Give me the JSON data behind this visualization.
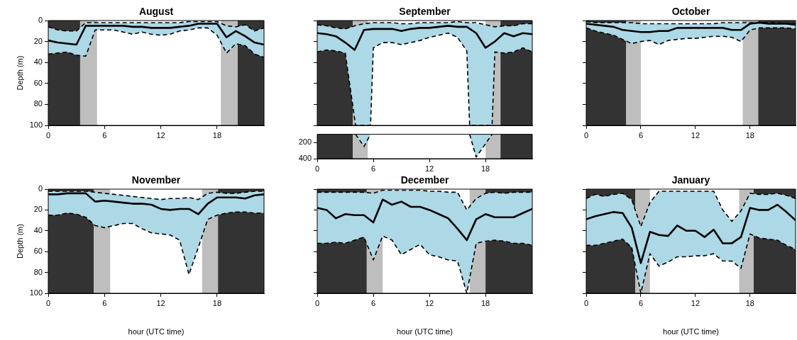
{
  "chart_data": [
    {
      "type": "line",
      "title": "August",
      "ylabel": "Depth (m)",
      "x": [
        0,
        1,
        2,
        3,
        4,
        5,
        6,
        7,
        8,
        9,
        10,
        11,
        12,
        13,
        14,
        15,
        16,
        17,
        18,
        19,
        20,
        21,
        22,
        23
      ],
      "xlim": [
        0,
        23
      ],
      "xticks": [
        0,
        6,
        12,
        18
      ],
      "ylim": [
        100,
        0
      ],
      "yticks": [
        0,
        20,
        40,
        60,
        80,
        100
      ],
      "series": [
        {
          "color": "#000000",
          "values": [
            19,
            21,
            22,
            23,
            5,
            5,
            5,
            5,
            5,
            6,
            6,
            7,
            7,
            7,
            6,
            5,
            3,
            3,
            3,
            16,
            10,
            15,
            21,
            23
          ]
        },
        {
          "color": "#000000",
          "line_style": "dashed",
          "values": [
            32,
            31,
            30,
            33,
            34,
            9,
            9,
            9,
            11,
            13,
            11,
            13,
            14,
            13,
            10,
            9,
            7,
            7,
            14,
            31,
            22,
            24,
            32,
            35
          ],
          "lower": [
            32,
            31,
            30,
            33,
            34,
            9,
            9,
            9,
            11,
            13,
            11,
            13,
            14,
            13,
            10,
            9,
            7,
            7,
            14,
            31,
            22,
            24,
            32,
            35
          ],
          "upper": [
            6,
            9,
            10,
            10,
            2,
            2,
            2,
            2,
            2,
            2,
            2,
            2,
            2,
            2,
            2,
            1,
            1,
            1,
            1,
            5,
            6,
            4,
            10,
            7
          ]
        },
        {
          "color": "#000000",
          "line_style": "dashed",
          "values": [
            6,
            9,
            10,
            10,
            2,
            2,
            2,
            2,
            2,
            2,
            2,
            2,
            2,
            2,
            2,
            1,
            1,
            1,
            1,
            5,
            6,
            4,
            10,
            7
          ]
        }
      ],
      "bands": [
        {
          "axis": "x",
          "from": 0,
          "to": 3.4,
          "color": "#333333"
        },
        {
          "axis": "x",
          "from": 3.4,
          "to": 5.2,
          "color": "#bebebe"
        },
        {
          "axis": "x",
          "from": 18.4,
          "to": 20.2,
          "color": "#bebebe"
        },
        {
          "axis": "x",
          "from": 20.2,
          "to": 23,
          "color": "#333333"
        }
      ]
    },
    {
      "type": "line",
      "title": "September",
      "x": [
        0,
        1,
        2,
        3,
        4,
        5,
        6,
        7,
        8,
        9,
        10,
        11,
        12,
        13,
        14,
        15,
        16,
        17,
        18,
        19,
        20,
        21,
        22,
        23
      ],
      "xlim": [
        0,
        23
      ],
      "xticks": [
        0,
        6,
        12,
        18
      ],
      "ylim": [
        100,
        0
      ],
      "yticks": [
        0,
        20,
        40,
        60,
        80,
        100
      ],
      "tick_labels": false,
      "series": [
        {
          "color": "#000000",
          "values": [
            12,
            13,
            15,
            21,
            28,
            9,
            8,
            8,
            8,
            10,
            8,
            7,
            7,
            6,
            5,
            6,
            6,
            12,
            26,
            20,
            12,
            15,
            12,
            13
          ]
        },
        {
          "color": "#000000",
          "line_style": "dashed",
          "x": [
            0,
            1,
            2,
            3,
            4.1,
            5.7,
            6,
            7,
            8,
            9,
            10,
            11,
            12,
            13,
            14,
            15,
            16,
            16.3,
            18.7,
            19,
            20,
            21,
            22,
            23
          ],
          "values": [
            30,
            28,
            29,
            31,
            100,
            100,
            26,
            21,
            21,
            23,
            21,
            19,
            16,
            14,
            12,
            16,
            29,
            100,
            100,
            30,
            31,
            30,
            26,
            30
          ],
          "lower": [
            30,
            28,
            29,
            31,
            100,
            100,
            26,
            21,
            21,
            23,
            21,
            19,
            16,
            14,
            12,
            16,
            29,
            100,
            100,
            30,
            31,
            30,
            26,
            30
          ],
          "upper": [
            4,
            5,
            7,
            8,
            5,
            2,
            2,
            2,
            2,
            3,
            3,
            2,
            2,
            2,
            2,
            1,
            2,
            2,
            5,
            6,
            5,
            5,
            3,
            3
          ]
        },
        {
          "color": "#000000",
          "line_style": "dashed",
          "values": [
            4,
            5,
            7,
            8,
            5,
            3,
            2,
            2,
            2,
            3,
            3,
            2,
            2,
            2,
            2,
            1,
            2,
            2,
            4,
            6,
            5,
            5,
            3,
            3
          ]
        }
      ],
      "bands": [
        {
          "axis": "x",
          "from": 0,
          "to": 3.8,
          "color": "#333333"
        },
        {
          "axis": "x",
          "from": 3.8,
          "to": 5.4,
          "color": "#bebebe"
        },
        {
          "axis": "x",
          "from": 18,
          "to": 19.6,
          "color": "#bebebe"
        },
        {
          "axis": "x",
          "from": 19.6,
          "to": 23,
          "color": "#333333"
        }
      ]
    },
    {
      "type": "line",
      "x": [
        4.1,
        5,
        5.7,
        11,
        16.3,
        17,
        18.7
      ],
      "xlim": [
        0,
        23
      ],
      "xticks": [
        0,
        6,
        12,
        18
      ],
      "ylim": [
        400,
        100
      ],
      "yticks": [
        200,
        400
      ],
      "series": [
        {
          "color": "#000000",
          "line_style": "dashed",
          "values": [
            100,
            250,
            100,
            null,
            100,
            380,
            100
          ],
          "lower": [
            100,
            250,
            100,
            null,
            100,
            380,
            100
          ],
          "upper": [
            100,
            100,
            100,
            null,
            100,
            100,
            100
          ]
        }
      ],
      "bands": [
        {
          "axis": "x",
          "from": 0,
          "to": 3.8,
          "color": "#333333"
        },
        {
          "axis": "x",
          "from": 3.8,
          "to": 5.4,
          "color": "#bebebe"
        },
        {
          "axis": "x",
          "from": 18,
          "to": 19.6,
          "color": "#bebebe"
        },
        {
          "axis": "x",
          "from": 19.6,
          "to": 23,
          "color": "#333333"
        }
      ]
    },
    {
      "type": "line",
      "title": "October",
      "x": [
        0,
        1,
        2,
        3,
        4,
        5,
        6,
        7,
        8,
        9,
        10,
        11,
        12,
        13,
        14,
        15,
        16,
        17,
        18,
        19,
        20,
        21,
        22,
        23
      ],
      "xlim": [
        0,
        23
      ],
      "xticks": [
        0,
        6,
        12,
        18
      ],
      "ylim": [
        100,
        0
      ],
      "yticks": [
        0,
        20,
        40,
        60,
        80,
        100
      ],
      "tick_labels": "x",
      "series": [
        {
          "color": "#000000",
          "values": [
            3,
            4,
            5,
            6,
            9,
            10,
            11,
            11,
            10,
            10,
            7,
            7,
            7,
            7,
            7,
            7,
            9,
            9,
            3,
            2,
            3,
            3,
            3,
            4
          ]
        },
        {
          "color": "#000000",
          "line_style": "dashed",
          "values": [
            7,
            10,
            12,
            14,
            18,
            22,
            20,
            19,
            23,
            19,
            18,
            17,
            17,
            16,
            15,
            15,
            16,
            20,
            9,
            7,
            7,
            7,
            7,
            8
          ],
          "lower": [
            7,
            10,
            12,
            14,
            18,
            22,
            20,
            19,
            23,
            19,
            18,
            17,
            17,
            16,
            15,
            15,
            16,
            20,
            9,
            7,
            7,
            7,
            7,
            8
          ],
          "upper": [
            1,
            2,
            2,
            2,
            2,
            2,
            3,
            3,
            3,
            3,
            3,
            3,
            3,
            3,
            3,
            2,
            2,
            2,
            2,
            2,
            2,
            2,
            3,
            3
          ]
        },
        {
          "color": "#000000",
          "line_style": "dashed",
          "values": [
            1,
            2,
            2,
            2,
            2,
            2,
            3,
            3,
            3,
            3,
            3,
            3,
            3,
            3,
            3,
            2,
            2,
            2,
            2,
            2,
            2,
            2,
            3,
            3
          ]
        }
      ],
      "bands": [
        {
          "axis": "x",
          "from": 0,
          "to": 4.4,
          "color": "#333333"
        },
        {
          "axis": "x",
          "from": 4.4,
          "to": 6,
          "color": "#bebebe"
        },
        {
          "axis": "x",
          "from": 17.2,
          "to": 18.9,
          "color": "#bebebe"
        },
        {
          "axis": "x",
          "from": 18.9,
          "to": 23,
          "color": "#333333"
        }
      ]
    },
    {
      "type": "line",
      "title": "November",
      "xlabel": "hour (UTC time)",
      "ylabel": "Depth (m)",
      "x": [
        0,
        1,
        2,
        3,
        4,
        5,
        6,
        7,
        8,
        9,
        10,
        11,
        12,
        13,
        14,
        15,
        16,
        17,
        18,
        19,
        20,
        21,
        22,
        23
      ],
      "xlim": [
        0,
        23
      ],
      "xticks": [
        0,
        6,
        12,
        18
      ],
      "ylim": [
        100,
        0
      ],
      "yticks": [
        0,
        20,
        40,
        60,
        80,
        100
      ],
      "series": [
        {
          "color": "#000000",
          "values": [
            5,
            5,
            4,
            4,
            4,
            12,
            11,
            12,
            13,
            14,
            14,
            15,
            19,
            20,
            19,
            19,
            24,
            14,
            8,
            8,
            8,
            9,
            6,
            5
          ]
        },
        {
          "color": "#000000",
          "line_style": "dashed",
          "values": [
            25,
            25,
            23,
            24,
            27,
            35,
            37,
            35,
            33,
            33,
            38,
            42,
            43,
            44,
            49,
            82,
            56,
            29,
            25,
            23,
            22,
            22,
            23,
            23
          ],
          "lower": [
            25,
            25,
            23,
            24,
            27,
            35,
            37,
            35,
            33,
            33,
            38,
            42,
            43,
            44,
            49,
            82,
            56,
            29,
            25,
            23,
            22,
            22,
            23,
            23
          ],
          "upper": [
            2,
            2,
            2,
            2,
            2,
            3,
            4,
            5,
            6,
            7,
            8,
            9,
            10,
            9,
            9,
            8,
            10,
            4,
            3,
            4,
            4,
            3,
            2,
            2
          ]
        },
        {
          "color": "#000000",
          "line_style": "dashed",
          "values": [
            2,
            2,
            2,
            2,
            2,
            3,
            4,
            5,
            6,
            7,
            8,
            9,
            10,
            9,
            9,
            8,
            10,
            4,
            3,
            4,
            4,
            3,
            2,
            2
          ]
        }
      ],
      "bands": [
        {
          "axis": "x",
          "from": 0,
          "to": 4.85,
          "color": "#333333"
        },
        {
          "axis": "x",
          "from": 4.85,
          "to": 6.6,
          "color": "#bebebe"
        },
        {
          "axis": "x",
          "from": 16.4,
          "to": 18.1,
          "color": "#bebebe"
        },
        {
          "axis": "x",
          "from": 18.1,
          "to": 23,
          "color": "#333333"
        }
      ]
    },
    {
      "type": "line",
      "title": "December",
      "xlabel": "hour (UTC time)",
      "x": [
        0,
        1,
        2,
        3,
        4,
        5,
        6,
        7,
        8,
        9,
        10,
        11,
        12,
        13,
        14,
        15,
        16,
        17,
        18,
        19,
        20,
        21,
        22,
        23
      ],
      "xlim": [
        0,
        23
      ],
      "xticks": [
        0,
        6,
        12,
        18
      ],
      "ylim": [
        100,
        0
      ],
      "yticks": [
        0,
        20,
        40,
        60,
        80,
        100
      ],
      "tick_labels": "x",
      "series": [
        {
          "color": "#000000",
          "values": [
            18,
            20,
            28,
            24,
            25,
            25,
            32,
            10,
            15,
            12,
            17,
            17,
            20,
            24,
            28,
            38,
            49,
            29,
            24,
            27,
            27,
            27,
            23,
            19
          ]
        },
        {
          "color": "#000000",
          "line_style": "dashed",
          "values": [
            52,
            52,
            51,
            52,
            49,
            46,
            68,
            45,
            49,
            63,
            58,
            53,
            63,
            65,
            68,
            69,
            100,
            52,
            50,
            49,
            50,
            52,
            52,
            54
          ],
          "lower": [
            52,
            52,
            51,
            52,
            49,
            46,
            68,
            45,
            49,
            63,
            58,
            53,
            63,
            65,
            68,
            69,
            100,
            52,
            50,
            49,
            50,
            52,
            52,
            54
          ],
          "upper": [
            3,
            3,
            3,
            3,
            3,
            3,
            4,
            1,
            1,
            1,
            1,
            1,
            2,
            2,
            3,
            3,
            20,
            9,
            4,
            3,
            4,
            3,
            3,
            3
          ]
        },
        {
          "color": "#000000",
          "line_style": "dashed",
          "values": [
            3,
            3,
            3,
            3,
            3,
            3,
            4,
            1,
            1,
            1,
            1,
            1,
            2,
            2,
            3,
            3,
            20,
            9,
            4,
            3,
            4,
            3,
            3,
            3
          ]
        }
      ],
      "bands": [
        {
          "axis": "x",
          "from": 0,
          "to": 5.3,
          "color": "#333333"
        },
        {
          "axis": "x",
          "from": 5.3,
          "to": 7,
          "color": "#bebebe"
        },
        {
          "axis": "x",
          "from": 16.3,
          "to": 18,
          "color": "#bebebe"
        },
        {
          "axis": "x",
          "from": 18,
          "to": 23,
          "color": "#333333"
        }
      ]
    },
    {
      "type": "line",
      "title": "January",
      "xlabel": "hour (UTC time)",
      "x": [
        0,
        1,
        2,
        3,
        4,
        5,
        6,
        7,
        8,
        9,
        10,
        11,
        12,
        13,
        14,
        15,
        16,
        17,
        18,
        19,
        20,
        21,
        22,
        23
      ],
      "xlim": [
        0,
        23
      ],
      "xticks": [
        0,
        6,
        12,
        18
      ],
      "ylim": [
        100,
        0
      ],
      "yticks": [
        0,
        20,
        40,
        60,
        80,
        100
      ],
      "tick_labels": "x",
      "series": [
        {
          "color": "#000000",
          "values": [
            29,
            26,
            24,
            22,
            23,
            37,
            71,
            41,
            44,
            45,
            35,
            40,
            40,
            46,
            39,
            52,
            52,
            46,
            18,
            20,
            20,
            15,
            22,
            30
          ]
        },
        {
          "color": "#000000",
          "line_style": "dashed",
          "values": [
            54,
            54,
            52,
            50,
            48,
            56,
            100,
            62,
            74,
            70,
            65,
            65,
            64,
            64,
            62,
            69,
            69,
            76,
            43,
            47,
            48,
            49,
            54,
            58
          ],
          "lower": [
            54,
            54,
            52,
            50,
            48,
            56,
            100,
            62,
            74,
            70,
            65,
            65,
            64,
            64,
            62,
            69,
            69,
            76,
            43,
            47,
            48,
            49,
            54,
            58
          ],
          "upper": [
            9,
            5,
            7,
            5,
            4,
            10,
            36,
            13,
            2,
            2,
            2,
            2,
            2,
            2,
            2,
            20,
            31,
            21,
            4,
            5,
            5,
            4,
            6,
            9
          ]
        },
        {
          "color": "#000000",
          "line_style": "dashed",
          "values": [
            9,
            5,
            7,
            5,
            4,
            10,
            36,
            13,
            2,
            2,
            2,
            2,
            2,
            2,
            2,
            20,
            31,
            21,
            4,
            5,
            5,
            4,
            6,
            9
          ]
        }
      ],
      "bands": [
        {
          "axis": "x",
          "from": 0,
          "to": 5.4,
          "color": "#333333"
        },
        {
          "axis": "x",
          "from": 5.4,
          "to": 7,
          "color": "#bebebe"
        },
        {
          "axis": "x",
          "from": 16.8,
          "to": 18.4,
          "color": "#bebebe"
        },
        {
          "axis": "x",
          "from": 18.4,
          "to": 23,
          "color": "#333333"
        }
      ]
    }
  ]
}
